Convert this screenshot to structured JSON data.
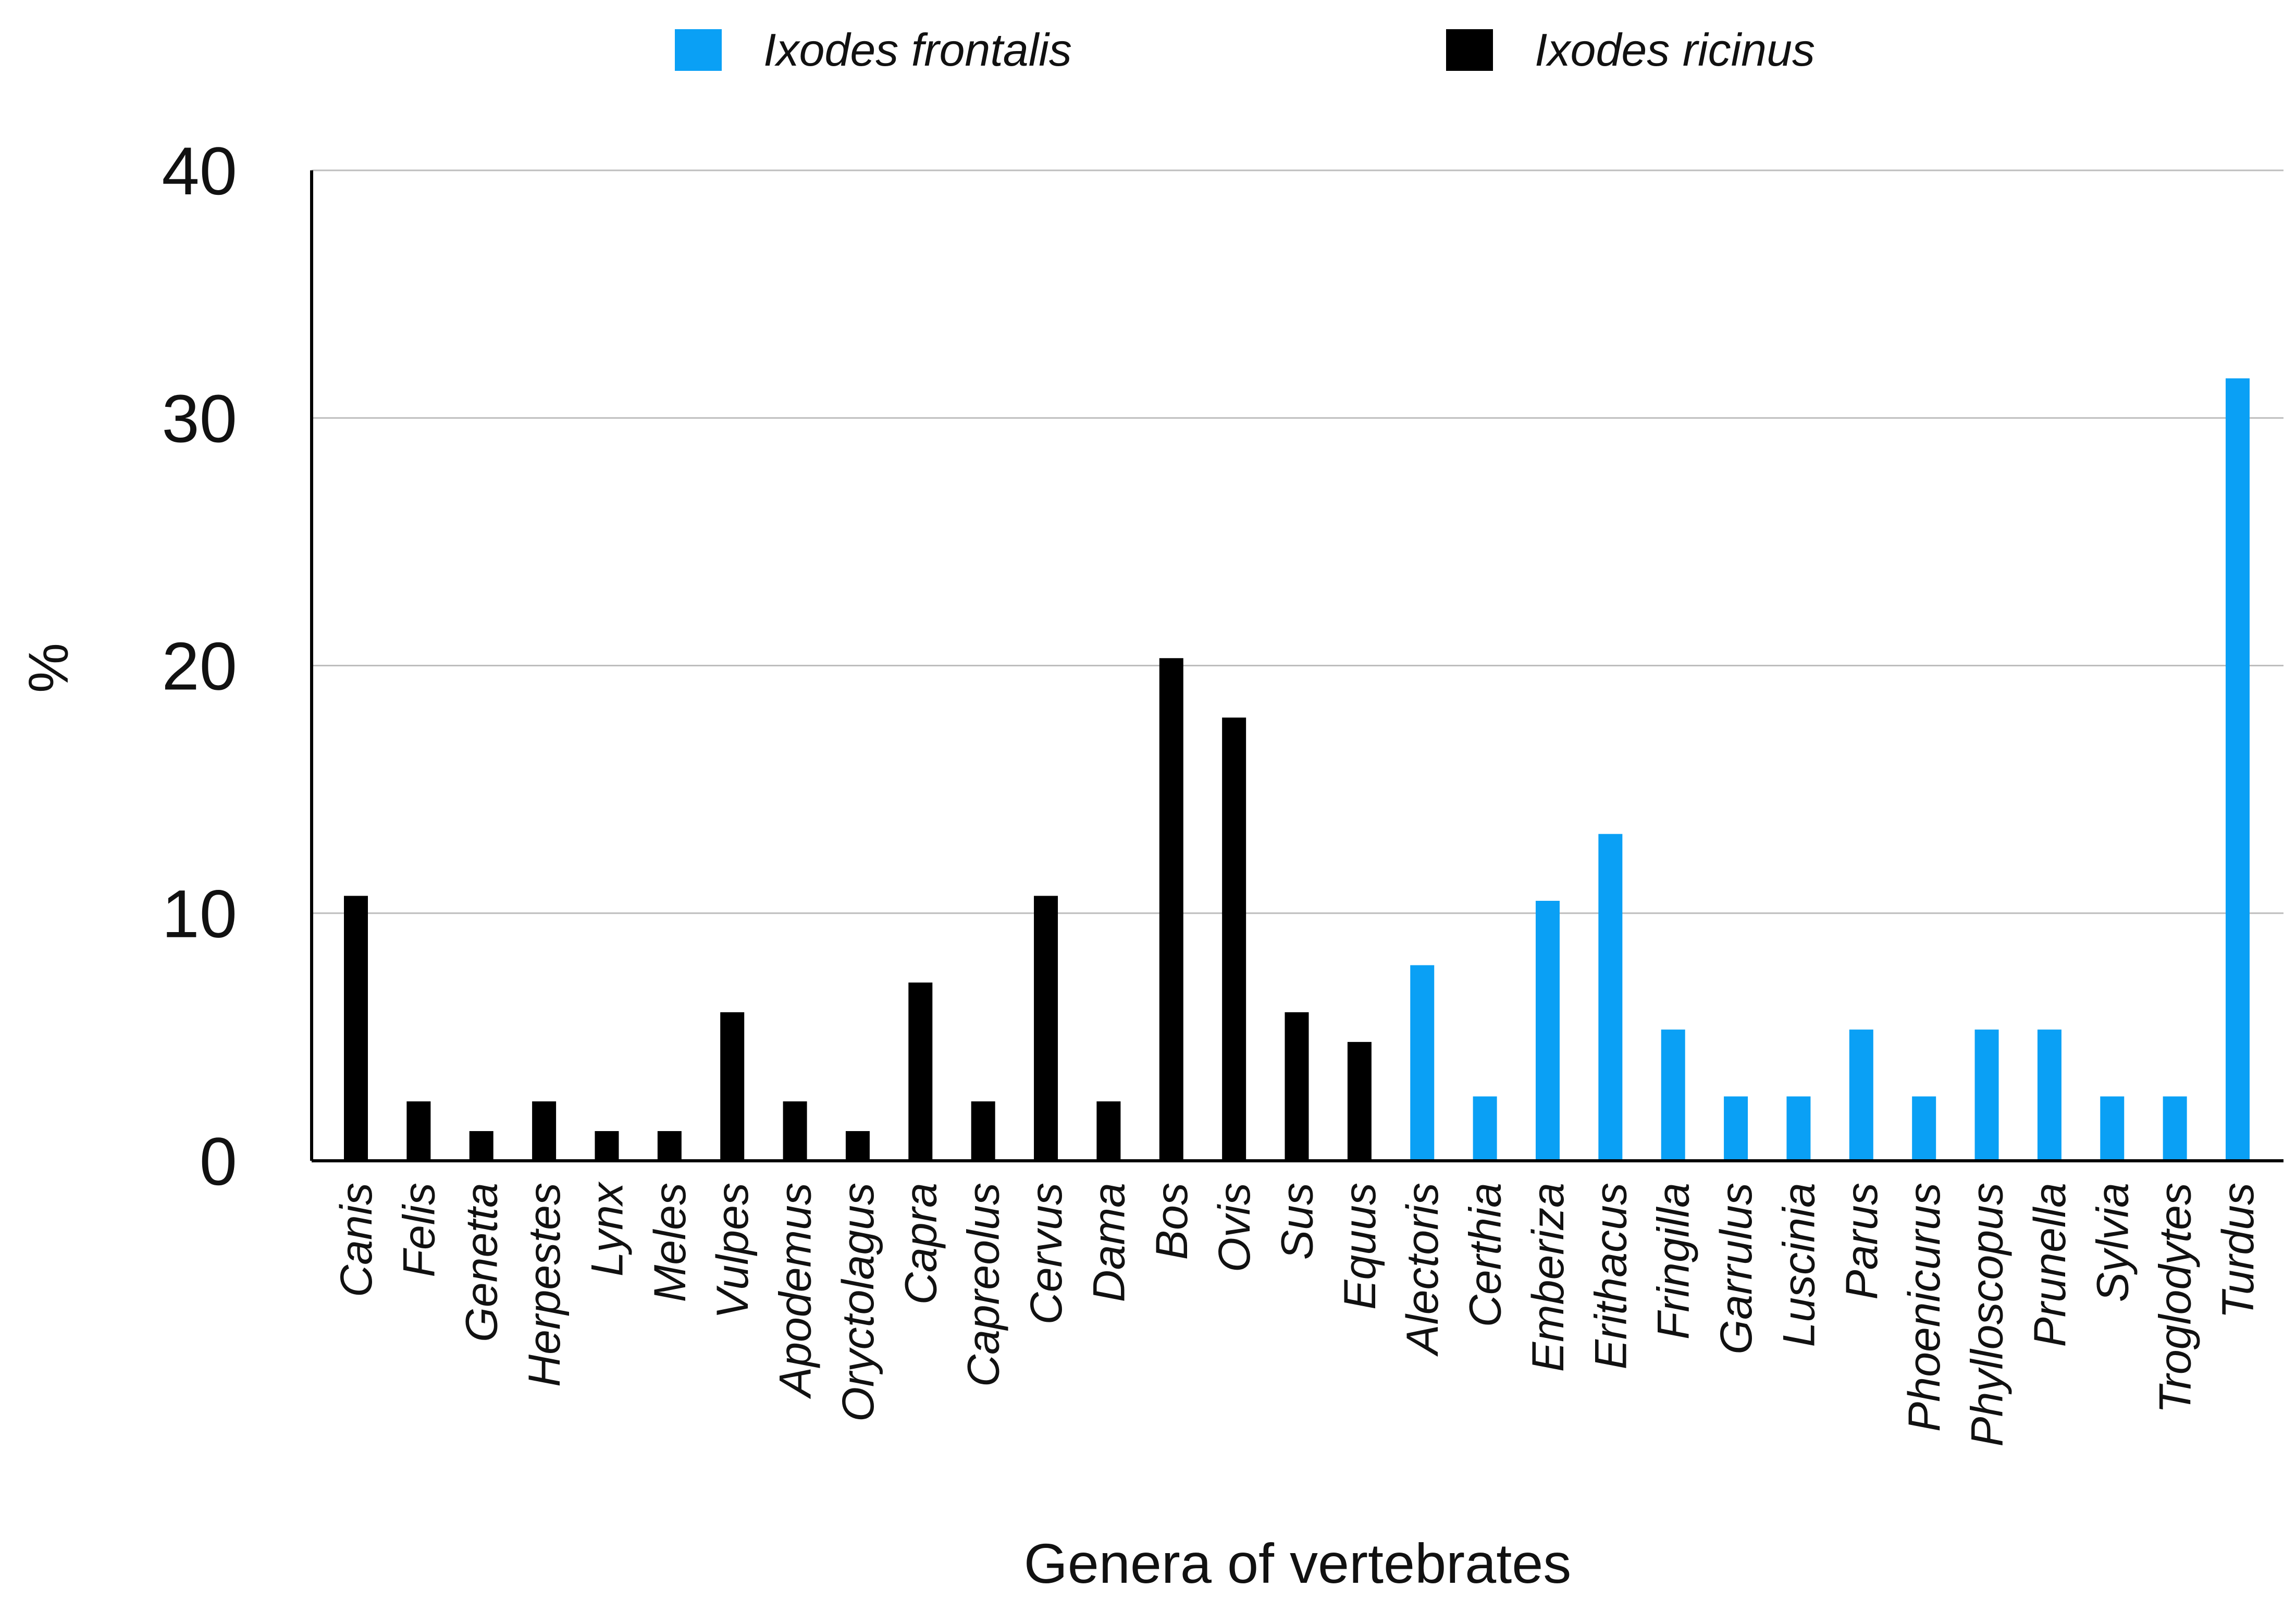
{
  "chart_data": {
    "type": "bar",
    "title": "",
    "xlabel": "Genera of vertebrates",
    "ylabel": "%",
    "ylim": [
      0,
      40
    ],
    "yticks": [
      0,
      10,
      20,
      30,
      40
    ],
    "grid": true,
    "legend_position": "top",
    "series": [
      {
        "name": "Ixodes frontalis",
        "color": "#0aa0f5"
      },
      {
        "name": "Ixodes ricinus",
        "color": "#000000"
      }
    ],
    "categories": [
      "Canis",
      "Felis",
      "Genetta",
      "Herpestes",
      "Lynx",
      "Meles",
      "Vulpes",
      "Apodemus",
      "Oryctolagus",
      "Capra",
      "Capreolus",
      "Cervus",
      "Dama",
      "Bos",
      "Ovis",
      "Sus",
      "Equus",
      "Alectoris",
      "Certhia",
      "Emberiza",
      "Erithacus",
      "Fringilla",
      "Garrulus",
      "Luscinia",
      "Parus",
      "Phoenicurus",
      "Phylloscopus",
      "Prunella",
      "Sylvia",
      "Troglodytes",
      "Turdus"
    ],
    "values": [
      10.7,
      2.4,
      1.2,
      2.4,
      1.2,
      1.2,
      6.0,
      2.4,
      1.2,
      7.2,
      2.4,
      10.7,
      2.4,
      20.3,
      17.9,
      6.0,
      4.8,
      7.9,
      2.6,
      10.5,
      13.2,
      5.3,
      2.6,
      2.6,
      5.3,
      2.6,
      5.3,
      5.3,
      2.6,
      2.6,
      31.6
    ],
    "bar_series": [
      1,
      1,
      1,
      1,
      1,
      1,
      1,
      1,
      1,
      1,
      1,
      1,
      1,
      1,
      1,
      1,
      1,
      0,
      0,
      0,
      0,
      0,
      0,
      0,
      0,
      0,
      0,
      0,
      0,
      0,
      0
    ]
  }
}
